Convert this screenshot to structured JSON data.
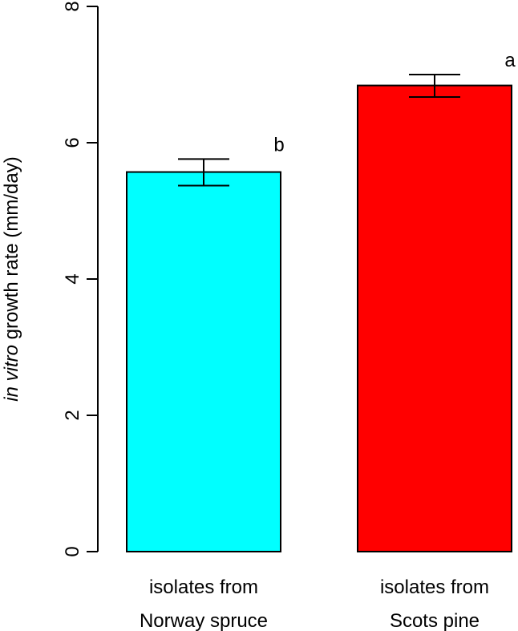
{
  "chart_data": {
    "type": "bar",
    "categories": [
      [
        "isolates from",
        "Norway spruce"
      ],
      [
        "isolates from",
        "Scots pine"
      ]
    ],
    "values": [
      5.57,
      6.84
    ],
    "error_low": [
      5.37,
      6.67
    ],
    "error_high": [
      5.76,
      7.0
    ],
    "significance_labels": [
      "b",
      "a"
    ],
    "colors": [
      "#00FFFF",
      "#FF0000"
    ],
    "ylabel_italic": "in vitro",
    "ylabel_rest": " growth rate (mm/day)",
    "ylim": [
      0,
      8
    ],
    "yticks": [
      0,
      2,
      4,
      6,
      8
    ],
    "grid": false,
    "legend": "none"
  }
}
